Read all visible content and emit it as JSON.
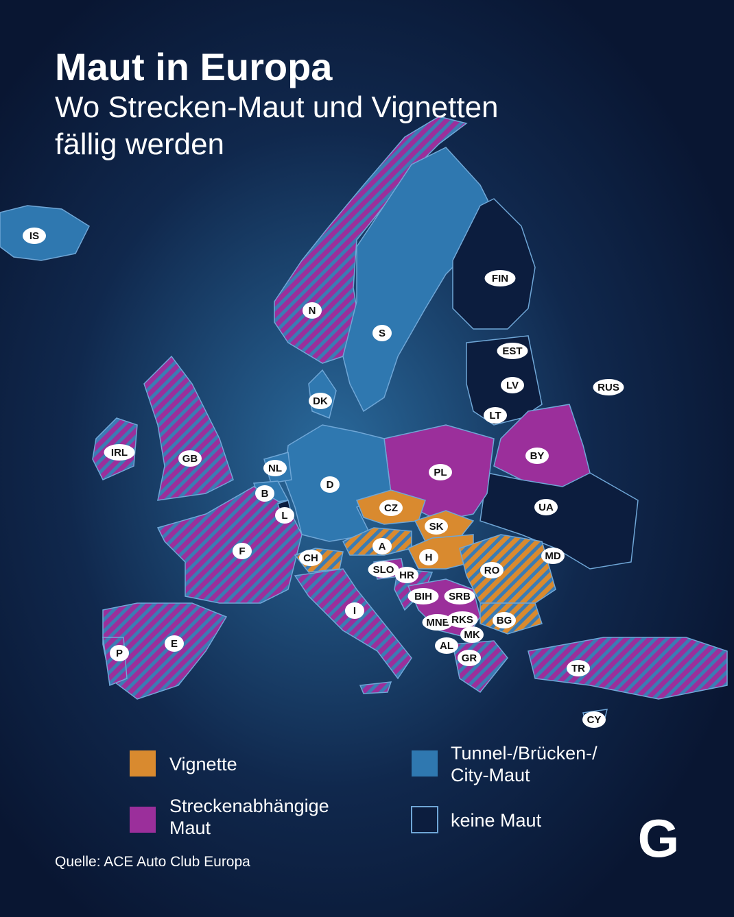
{
  "header": {
    "title": "Maut in Europa",
    "subtitle": [
      "Wo Strecken-Maut und Vignetten",
      "fällig werden"
    ]
  },
  "map": {
    "labels": [
      "IS",
      "N",
      "S",
      "FIN",
      "EST",
      "LV",
      "RUS",
      "LT",
      "DK",
      "IRL",
      "GB",
      "NL",
      "BY",
      "PL",
      "B",
      "D",
      "L",
      "CZ",
      "UA",
      "SK",
      "A",
      "F",
      "CH",
      "H",
      "MD",
      "SLO",
      "HR",
      "RO",
      "BIH",
      "SRB",
      "I",
      "MNE",
      "RKS",
      "BG",
      "E",
      "MK",
      "AL",
      "P",
      "GR",
      "TR",
      "CY"
    ]
  },
  "legend": {
    "items": [
      {
        "label": [
          "Vignette"
        ]
      },
      {
        "label": [
          "Streckenabhängige",
          "Maut"
        ]
      },
      {
        "label": [
          "Tunnel-/Brücken-/",
          "City-Maut"
        ]
      },
      {
        "label": [
          "keine Maut"
        ]
      }
    ]
  },
  "source": "Quelle: ACE Auto Club Europa",
  "brand": "G"
}
